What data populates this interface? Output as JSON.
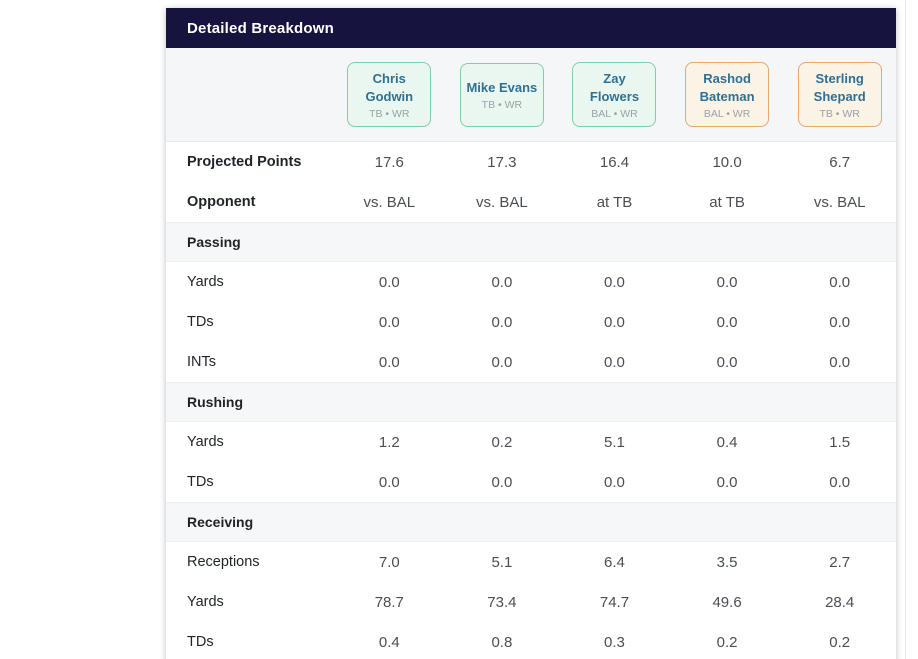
{
  "panel": {
    "title": "Detailed Breakdown"
  },
  "players": [
    {
      "name": "Chris Godwin",
      "team": "TB • WR",
      "variant": "green"
    },
    {
      "name": "Mike Evans",
      "team": "TB • WR",
      "variant": "green"
    },
    {
      "name": "Zay Flowers",
      "team": "BAL • WR",
      "variant": "green"
    },
    {
      "name": "Rashod Bateman",
      "team": "BAL • WR",
      "variant": "orange"
    },
    {
      "name": "Sterling Shepard",
      "team": "TB • WR",
      "variant": "orange"
    }
  ],
  "rows": [
    {
      "type": "stat",
      "label": "Projected Points",
      "bold": true,
      "values": [
        "17.6",
        "17.3",
        "16.4",
        "10.0",
        "6.7"
      ]
    },
    {
      "type": "stat",
      "label": "Opponent",
      "bold": true,
      "values": [
        "vs. BAL",
        "vs. BAL",
        "at TB",
        "at TB",
        "vs. BAL"
      ]
    },
    {
      "type": "section",
      "label": "Passing"
    },
    {
      "type": "stat",
      "label": "Yards",
      "bold": false,
      "values": [
        "0.0",
        "0.0",
        "0.0",
        "0.0",
        "0.0"
      ]
    },
    {
      "type": "stat",
      "label": "TDs",
      "bold": false,
      "values": [
        "0.0",
        "0.0",
        "0.0",
        "0.0",
        "0.0"
      ]
    },
    {
      "type": "stat",
      "label": "INTs",
      "bold": false,
      "values": [
        "0.0",
        "0.0",
        "0.0",
        "0.0",
        "0.0"
      ]
    },
    {
      "type": "section",
      "label": "Rushing"
    },
    {
      "type": "stat",
      "label": "Yards",
      "bold": false,
      "values": [
        "1.2",
        "0.2",
        "5.1",
        "0.4",
        "1.5"
      ]
    },
    {
      "type": "stat",
      "label": "TDs",
      "bold": false,
      "values": [
        "0.0",
        "0.0",
        "0.0",
        "0.0",
        "0.0"
      ]
    },
    {
      "type": "section",
      "label": "Receiving"
    },
    {
      "type": "stat",
      "label": "Receptions",
      "bold": false,
      "values": [
        "7.0",
        "5.1",
        "6.4",
        "3.5",
        "2.7"
      ]
    },
    {
      "type": "stat",
      "label": "Yards",
      "bold": false,
      "values": [
        "78.7",
        "73.4",
        "74.7",
        "49.6",
        "28.4"
      ]
    },
    {
      "type": "stat",
      "label": "TDs",
      "bold": false,
      "values": [
        "0.4",
        "0.8",
        "0.3",
        "0.2",
        "0.2"
      ]
    }
  ],
  "theme": {
    "header_bg": "#16143F",
    "header_text": "#FFFFFF",
    "card_green_bg": "#EAF7F0",
    "card_green_border": "#7FCEA6",
    "card_orange_bg": "#FCF3E7",
    "card_orange_border": "#E3A96F",
    "player_name_color": "#2F7094",
    "player_team_color": "#9BA1A8",
    "section_bg": "#F6F7F9",
    "row_label_color": "#1F2328",
    "value_color": "#4A4E54"
  }
}
